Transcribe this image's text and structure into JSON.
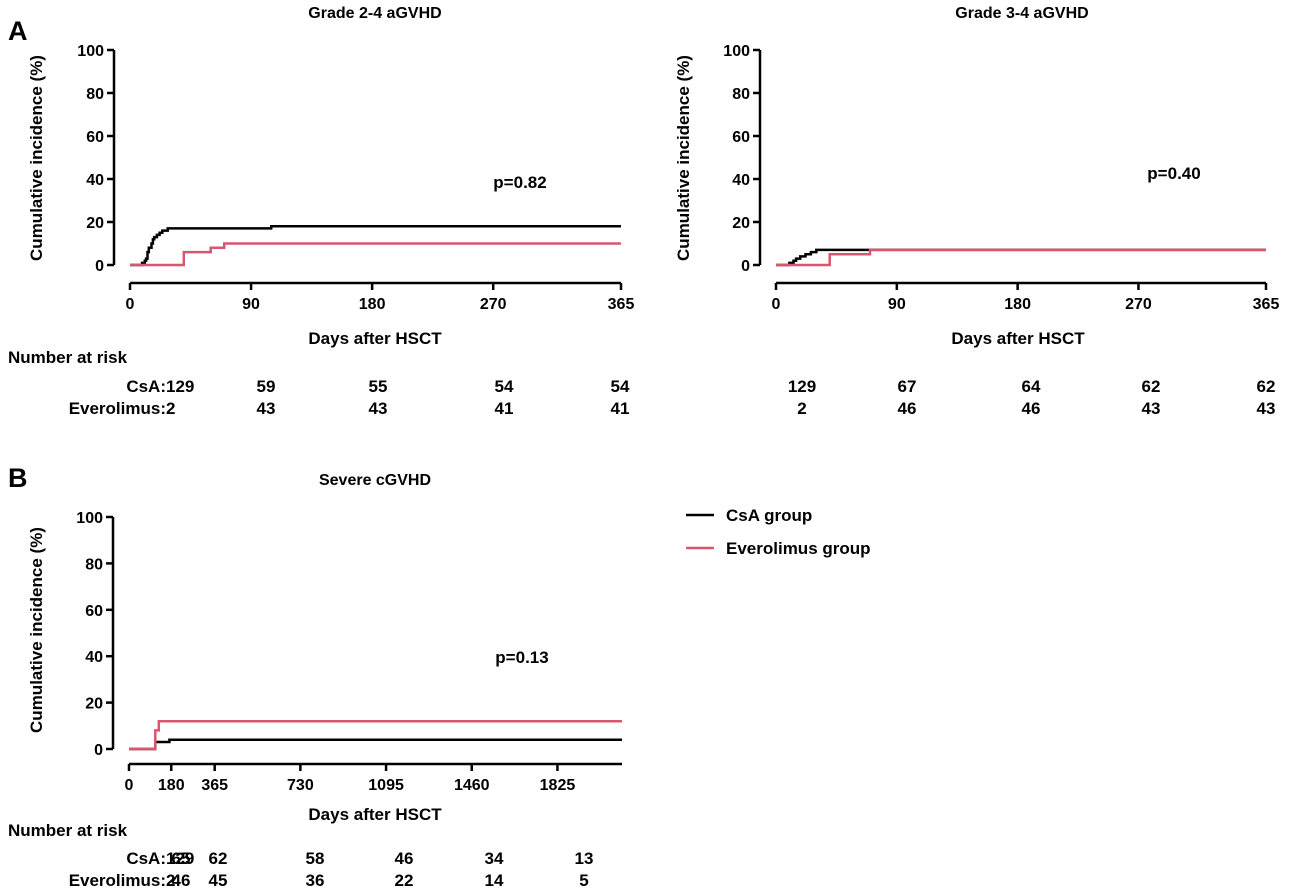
{
  "panel_labels": [
    "A",
    "B"
  ],
  "legend": [
    {
      "label": "CsA group",
      "color": "#000000"
    },
    {
      "label": "Everolimus group",
      "color": "#d9576e"
    }
  ],
  "risk_title": "Number at risk",
  "chart_data": [
    {
      "type": "line",
      "title": "Grade 2-4 aGVHD",
      "xlabel": "Days after HSCT",
      "ylabel": "Cumulative incidence (%)",
      "xlim": [
        0,
        365
      ],
      "ylim": [
        0,
        100
      ],
      "xticks": [
        0,
        90,
        180,
        270,
        365
      ],
      "yticks": [
        0,
        20,
        40,
        60,
        80,
        100
      ],
      "annotation": "p=0.82",
      "series": [
        {
          "name": "CsA group",
          "color": "#000000",
          "x": [
            0,
            8,
            9,
            11,
            12,
            13,
            14,
            16,
            17,
            18,
            20,
            22,
            24,
            28,
            60,
            100,
            105,
            365
          ],
          "y": [
            0,
            0,
            1,
            2,
            3,
            6,
            8,
            10,
            12,
            13,
            14,
            15,
            16,
            17,
            17,
            17,
            18,
            18
          ]
        },
        {
          "name": "Everolimus group",
          "color": "#d9576e",
          "x": [
            0,
            38,
            40,
            55,
            60,
            68,
            70,
            365
          ],
          "y": [
            0,
            0,
            6,
            6,
            8,
            8,
            10,
            10
          ]
        }
      ],
      "risk": {
        "labels": [
          "CsA:",
          "Everolimus:"
        ],
        "rows": [
          [
            "129",
            "59",
            "55",
            "54",
            "54"
          ],
          [
            "2",
            "43",
            "43",
            "41",
            "41"
          ]
        ]
      }
    },
    {
      "type": "line",
      "title": "Grade 3-4 aGVHD",
      "xlabel": "Days after HSCT",
      "ylabel": "Cumulative incidence (%)",
      "xlim": [
        0,
        365
      ],
      "ylim": [
        0,
        100
      ],
      "xticks": [
        0,
        90,
        180,
        270,
        365
      ],
      "yticks": [
        0,
        20,
        40,
        60,
        80,
        100
      ],
      "annotation": "p=0.40",
      "series": [
        {
          "name": "CsA group",
          "color": "#000000",
          "x": [
            0,
            8,
            10,
            13,
            15,
            18,
            22,
            26,
            30,
            365
          ],
          "y": [
            0,
            0,
            1,
            2,
            3,
            4,
            5,
            6,
            7,
            7
          ]
        },
        {
          "name": "Everolimus group",
          "color": "#d9576e",
          "x": [
            0,
            38,
            40,
            68,
            70,
            365
          ],
          "y": [
            0,
            0,
            5,
            5,
            7,
            7
          ]
        }
      ],
      "risk": {
        "labels": [
          "",
          ""
        ],
        "rows": [
          [
            "129",
            "67",
            "64",
            "62",
            "62"
          ],
          [
            "2",
            "46",
            "46",
            "43",
            "43"
          ]
        ]
      }
    },
    {
      "type": "line",
      "title": "Severe cGVHD",
      "xlabel": "Days after HSCT",
      "ylabel": "Cumulative incidence (%)",
      "xlim": [
        0,
        2100
      ],
      "ylim": [
        0,
        100
      ],
      "xticks": [
        0,
        180,
        365,
        730,
        1095,
        1460,
        1825
      ],
      "yticks": [
        0,
        20,
        40,
        60,
        80,
        100
      ],
      "annotation": "p=0.13",
      "series": [
        {
          "name": "CsA group",
          "color": "#000000",
          "x": [
            0,
            110,
            112,
            170,
            172,
            2100
          ],
          "y": [
            0,
            0,
            3,
            3,
            4,
            4
          ]
        },
        {
          "name": "Everolimus group",
          "color": "#d9576e",
          "x": [
            0,
            110,
            112,
            125,
            127,
            2100
          ],
          "y": [
            0,
            0,
            8,
            8,
            12,
            12
          ]
        }
      ],
      "risk": {
        "labels": [
          "CsA:",
          "Everolimus:"
        ],
        "rows": [
          [
            "129",
            "65",
            "62",
            "58",
            "46",
            "34",
            "13"
          ],
          [
            "2",
            "46",
            "45",
            "36",
            "22",
            "14",
            "5"
          ]
        ]
      }
    }
  ]
}
